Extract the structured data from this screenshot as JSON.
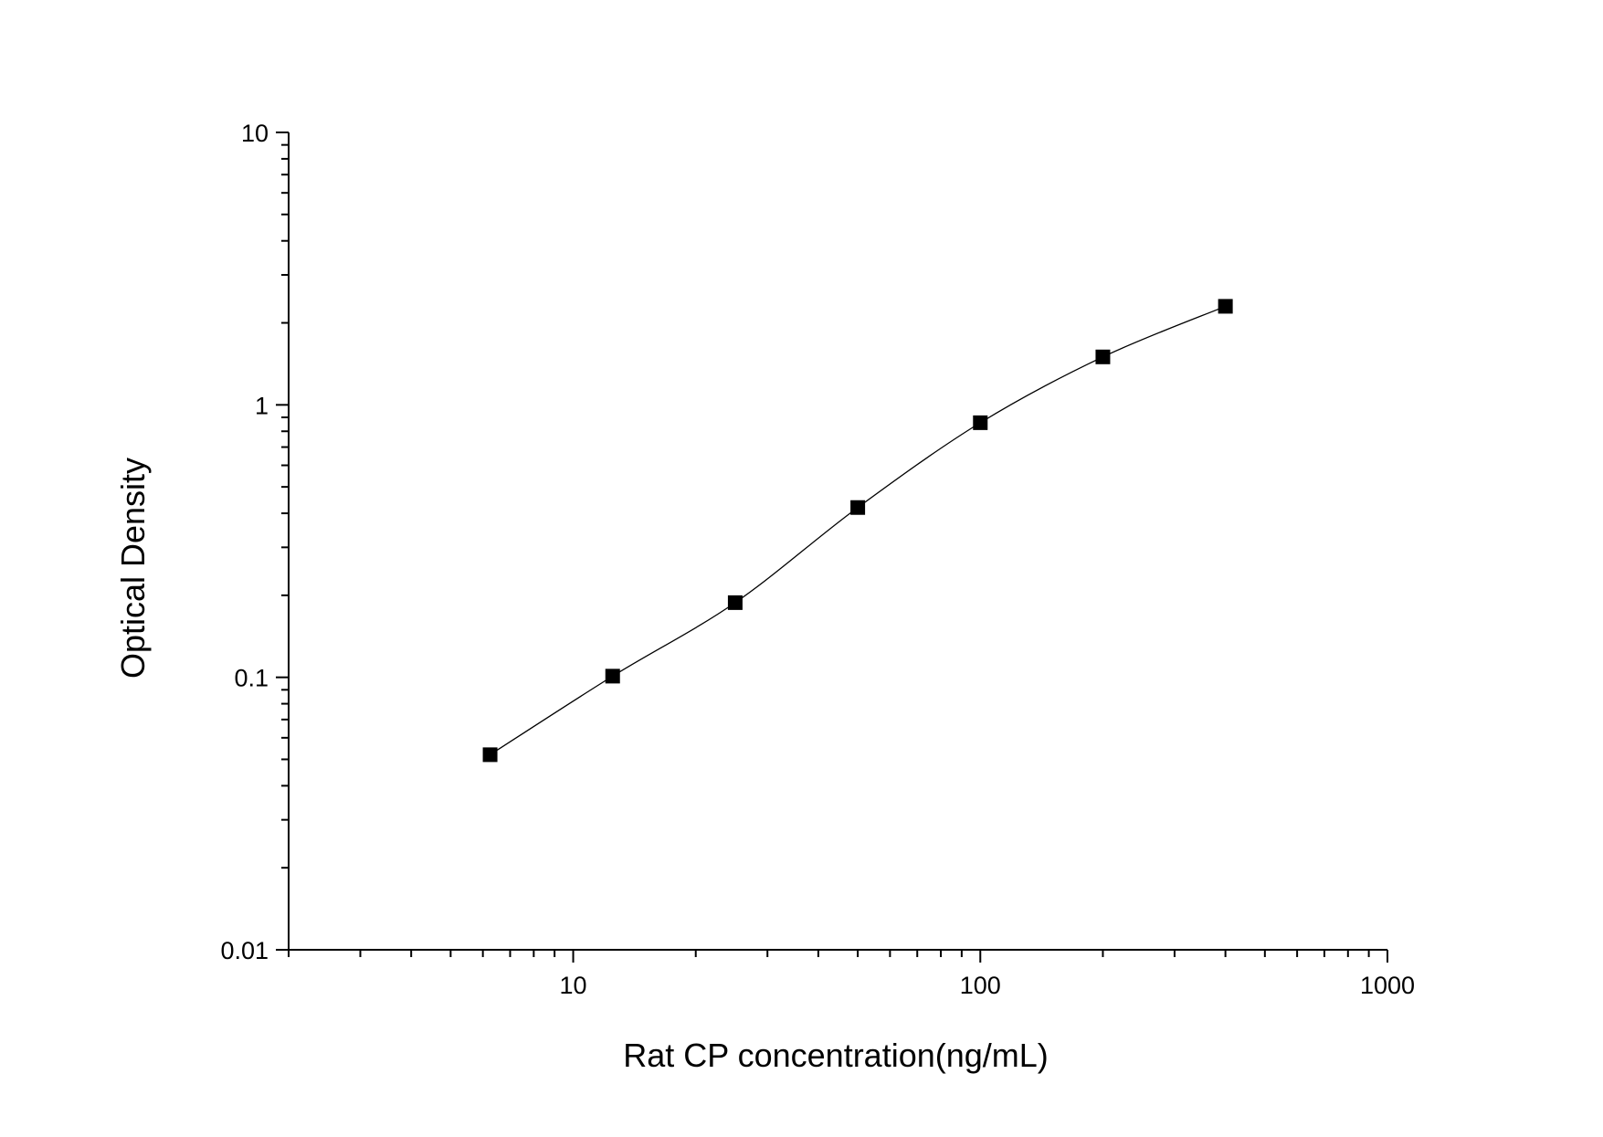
{
  "chart_data": {
    "type": "scatter",
    "title": "",
    "xlabel": "Rat CP concentration(ng/mL)",
    "ylabel": "Optical Density",
    "x_scale": "log",
    "y_scale": "log",
    "xlim": [
      2,
      1000
    ],
    "ylim": [
      0.01,
      10
    ],
    "x_tick_labels": [
      "10",
      "100",
      "1000"
    ],
    "y_tick_labels": [
      "0.01",
      "0.1",
      "1",
      "10"
    ],
    "grid": false,
    "legend": "none",
    "series": [
      {
        "x": [
          6.25,
          12.5,
          25,
          50,
          100,
          200,
          400
        ],
        "y": [
          0.052,
          0.101,
          0.188,
          0.42,
          0.86,
          1.5,
          2.3
        ],
        "marker": "square",
        "color": "#000000",
        "fit_curve": true
      }
    ]
  }
}
